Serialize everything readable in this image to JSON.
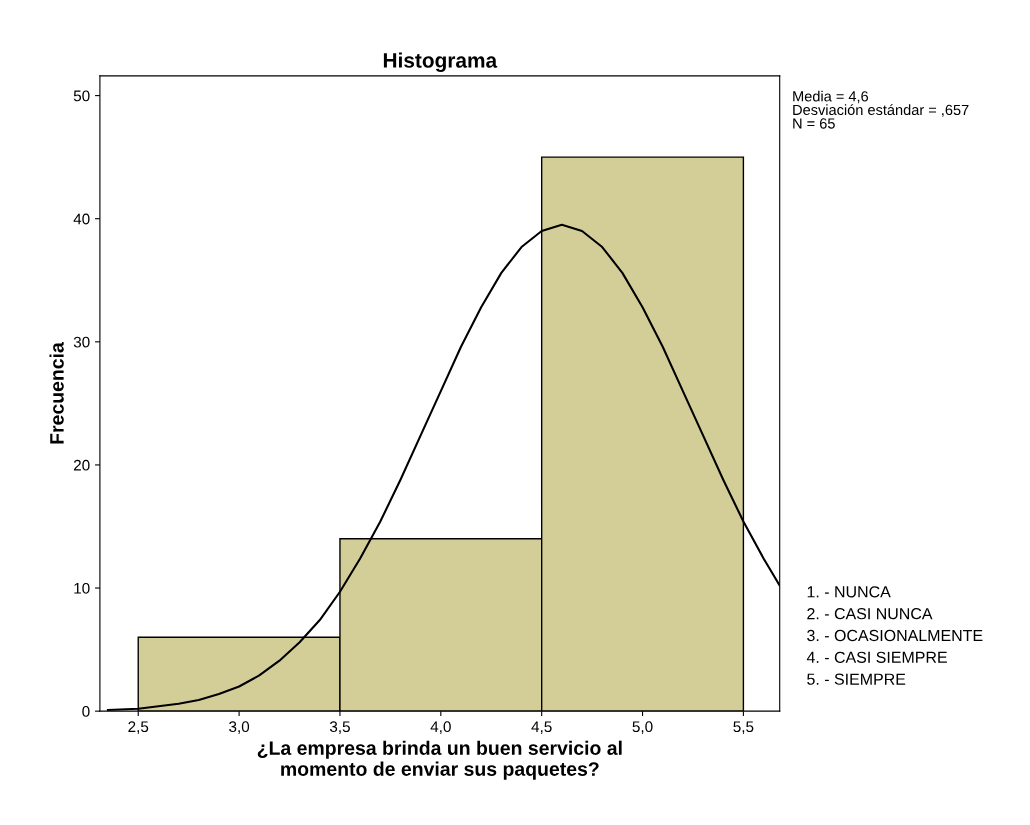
{
  "chart_data": {
    "type": "histogram",
    "title": "Histograma",
    "xlabel": "¿La empresa brinda un buen servicio al\nmomento de enviar sus paquetes?",
    "ylabel": "Frecuencia",
    "bins": [
      2.5,
      3.5,
      4.5,
      5.5
    ],
    "values": [
      6,
      14,
      45
    ],
    "color": "#d3ce97",
    "series": [
      {
        "type": "line",
        "color": "#000000",
        "x": [
          2.35,
          2.5,
          2.6,
          2.7,
          2.8,
          2.9,
          3.0,
          3.1,
          3.2,
          3.3,
          3.4,
          3.5,
          3.6,
          3.7,
          3.8,
          3.9,
          4.0,
          4.1,
          4.2,
          4.3,
          4.4,
          4.5,
          4.6,
          4.7,
          4.8,
          4.9,
          5.0,
          5.1,
          5.2,
          5.3,
          5.4,
          5.5,
          5.6,
          5.68
        ],
        "values": [
          0.1,
          0.2,
          0.4,
          0.6,
          0.9,
          1.4,
          2.0,
          2.9,
          4.1,
          5.6,
          7.4,
          9.7,
          12.4,
          15.4,
          18.8,
          22.4,
          26.0,
          29.6,
          32.8,
          35.6,
          37.7,
          39.0,
          39.5,
          39.0,
          37.7,
          35.6,
          32.8,
          29.6,
          26.0,
          22.4,
          18.8,
          15.4,
          12.4,
          10.2
        ]
      }
    ],
    "xlim": [
      2.31,
      5.68
    ],
    "ylim": [
      0,
      51.6
    ],
    "xticks": [
      {
        "value": 2.5,
        "label": "2,5"
      },
      {
        "value": 3.0,
        "label": "3,0"
      },
      {
        "value": 3.5,
        "label": "3,5"
      },
      {
        "value": 4.0,
        "label": "4,0"
      },
      {
        "value": 4.5,
        "label": "4,5"
      },
      {
        "value": 5.0,
        "label": "5,0"
      },
      {
        "value": 5.5,
        "label": "5,5"
      }
    ],
    "yticks": [
      0,
      10,
      20,
      30,
      40,
      50
    ],
    "grid": false,
    "legend": false,
    "annotations": [
      "Media = 4,6\nDesviación estándar = ,657\nN = 65",
      "1. - NUNCA\n2. - CASI NUNCA\n3. - OCASIONALMENTE\n4. - CASI SIEMPRE\n5. - SIEMPRE"
    ]
  }
}
